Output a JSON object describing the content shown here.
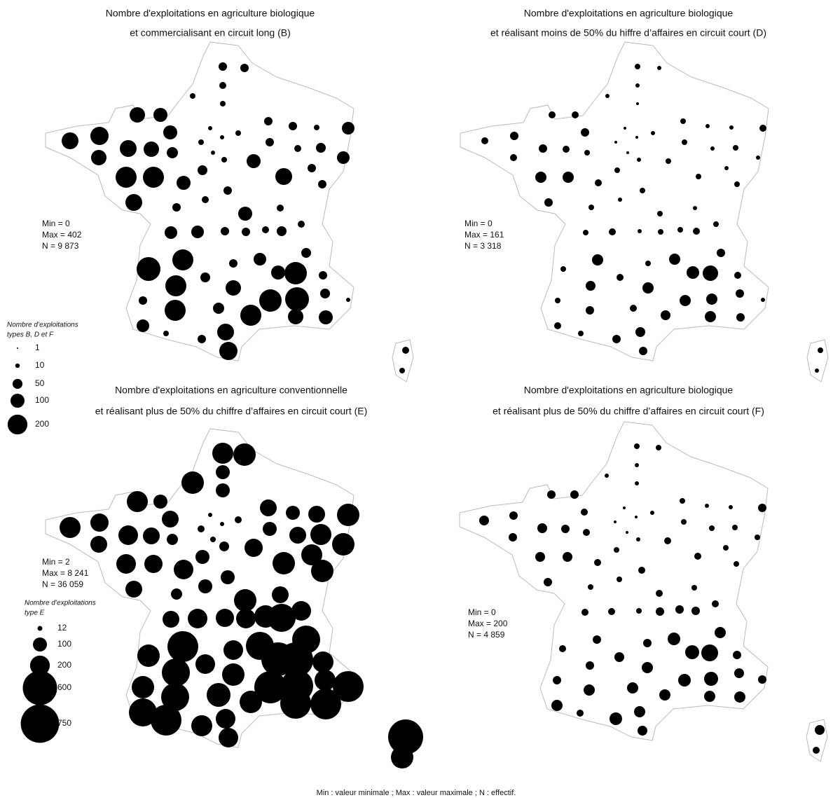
{
  "maps": [
    {
      "title_lines": [
        "Nombre d'exploitations en agriculture biologique",
        "et commercialisant en circuit long (B)"
      ],
      "stats": [
        "Min = 0",
        "Max = 402",
        "N = 9 873"
      ],
      "values": [
        36,
        36,
        25,
        16,
        16,
        121,
        100,
        100,
        144,
        169,
        121,
        144,
        121,
        64,
        225,
        225,
        100,
        144,
        36,
        9,
        9,
        16,
        16,
        9,
        16,
        36,
        36,
        16,
        81,
        36,
        25,
        49,
        81,
        100,
        144,
        36,
        36,
        49,
        36,
        25,
        100,
        25,
        25,
        81,
        81,
        36,
        36,
        25,
        49,
        289,
        225,
        225,
        49,
        36,
        81,
        100,
        256,
        49,
        121,
        256,
        289,
        36,
        9,
        36,
        225,
        64,
        225,
        121,
        100,
        81,
        16,
        36,
        144,
        169,
        49,
        25,
        16
      ]
    },
    {
      "title_lines": [
        "Nombre d'exploitations en agriculture biologique",
        "et réalisant moins de 50% du hiffre d’affaires en circuit court (D)"
      ],
      "stats": [
        "Min = 0",
        "Max = 161",
        "N = 3 318"
      ],
      "values": [
        16,
        9,
        9,
        9,
        4,
        25,
        25,
        36,
        25,
        36,
        25,
        36,
        25,
        16,
        64,
        64,
        25,
        36,
        16,
        4,
        4,
        9,
        4,
        4,
        9,
        16,
        9,
        9,
        25,
        16,
        9,
        16,
        9,
        16,
        16,
        9,
        16,
        16,
        16,
        9,
        16,
        9,
        16,
        25,
        16,
        9,
        16,
        16,
        25,
        16,
        64,
        49,
        25,
        16,
        64,
        81,
        121,
        36,
        64,
        64,
        64,
        25,
        9,
        16,
        36,
        25,
        49,
        64,
        36,
        25,
        16,
        36,
        49,
        36,
        36,
        16,
        9
      ]
    },
    {
      "title_lines": [
        "Nombre d'exploitations en agriculture conventionnelle",
        "et réalisant plus de 50% du chiffre d’affaires en circuit court (E)"
      ],
      "stats": [
        "Min = 2",
        "Max = 8 241",
        "N = 36 059"
      ],
      "values": [
        225,
        256,
        100,
        256,
        100,
        225,
        100,
        144,
        225,
        169,
        144,
        196,
        144,
        64,
        196,
        169,
        196,
        144,
        64,
        9,
        9,
        25,
        25,
        16,
        49,
        144,
        100,
        144,
        256,
        100,
        144,
        225,
        256,
        169,
        256,
        225,
        256,
        100,
        100,
        100,
        256,
        144,
        196,
        196,
        144,
        169,
        196,
        256,
        400,
        256,
        484,
        400,
        196,
        196,
        400,
        576,
        625,
        400,
        256,
        529,
        529,
        225,
        484,
        256,
        400,
        289,
        256,
        484,
        484,
        400,
        484,
        225,
        196,
        196,
        225,
        625,
        256
      ]
    },
    {
      "title_lines": [
        "Nombre d'exploitations en agriculture biologique",
        "et réalisant plus de 50% du chiffre d’affaires en circuit court (F)"
      ],
      "stats": [
        "Min = 0",
        "Max = 200",
        "N = 4 859"
      ],
      "values": [
        16,
        16,
        9,
        9,
        9,
        36,
        36,
        25,
        49,
        36,
        36,
        49,
        36,
        25,
        49,
        49,
        25,
        36,
        16,
        4,
        4,
        9,
        4,
        4,
        9,
        16,
        9,
        9,
        36,
        16,
        16,
        16,
        16,
        25,
        25,
        16,
        16,
        16,
        25,
        16,
        25,
        16,
        25,
        25,
        25,
        16,
        36,
        36,
        36,
        25,
        36,
        36,
        49,
        36,
        81,
        100,
        144,
        64,
        64,
        81,
        100,
        36,
        36,
        36,
        64,
        64,
        64,
        64,
        64,
        64,
        25,
        81,
        64,
        49,
        49,
        49,
        25
      ]
    }
  ],
  "legend_bdf": {
    "title_lines": [
      "Nombre d’exploitations",
      "types B, D et F"
    ],
    "values": [
      1,
      10,
      50,
      100,
      200
    ]
  },
  "legend_e": {
    "title_lines": [
      "Nombre d’exploitations",
      "type E"
    ],
    "values": [
      12,
      100,
      200,
      600,
      750
    ]
  },
  "footer": "Min : valeur minimale ; Max : valeur maximale ; N : effectif."
}
